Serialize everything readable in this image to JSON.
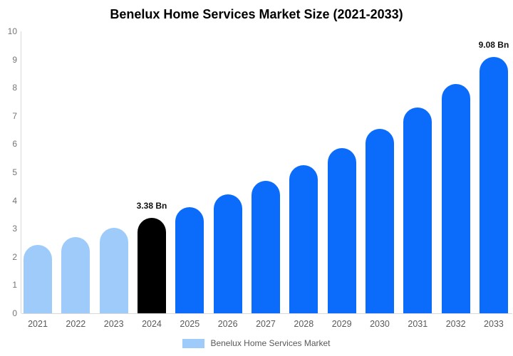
{
  "chart_data": {
    "type": "bar",
    "title": "Benelux Home Services Market Size (2021-2033)",
    "categories": [
      "2021",
      "2022",
      "2023",
      "2024",
      "2025",
      "2026",
      "2027",
      "2028",
      "2029",
      "2030",
      "2031",
      "2032",
      "2033"
    ],
    "values": [
      2.43,
      2.71,
      3.03,
      3.38,
      3.77,
      4.21,
      4.7,
      5.25,
      5.85,
      6.53,
      7.29,
      8.14,
      9.08
    ],
    "bar_color_keys": [
      "lightblue",
      "lightblue",
      "lightblue",
      "black",
      "blue",
      "blue",
      "blue",
      "blue",
      "blue",
      "blue",
      "blue",
      "blue",
      "blue"
    ],
    "annotations": [
      {
        "category": "2024",
        "text": "3.38 Bn"
      },
      {
        "category": "2033",
        "text": "9.08 Bn"
      }
    ],
    "ylim": [
      0,
      10
    ],
    "ytick_step": 1,
    "xlabel": "",
    "ylabel": "",
    "grid": false,
    "legend_position": "bottom",
    "legend": {
      "label": "Benelux Home Services Market",
      "swatch_color_key": "lightblue"
    },
    "colors": {
      "lightblue": "#9ecbfa",
      "blue": "#0b6bfb",
      "black": "#000000",
      "axis": "#d9d9d9",
      "ytick_text": "#757575",
      "xtick_text": "#595959",
      "annotation_text": "#111111",
      "title_text": "#000000"
    }
  }
}
